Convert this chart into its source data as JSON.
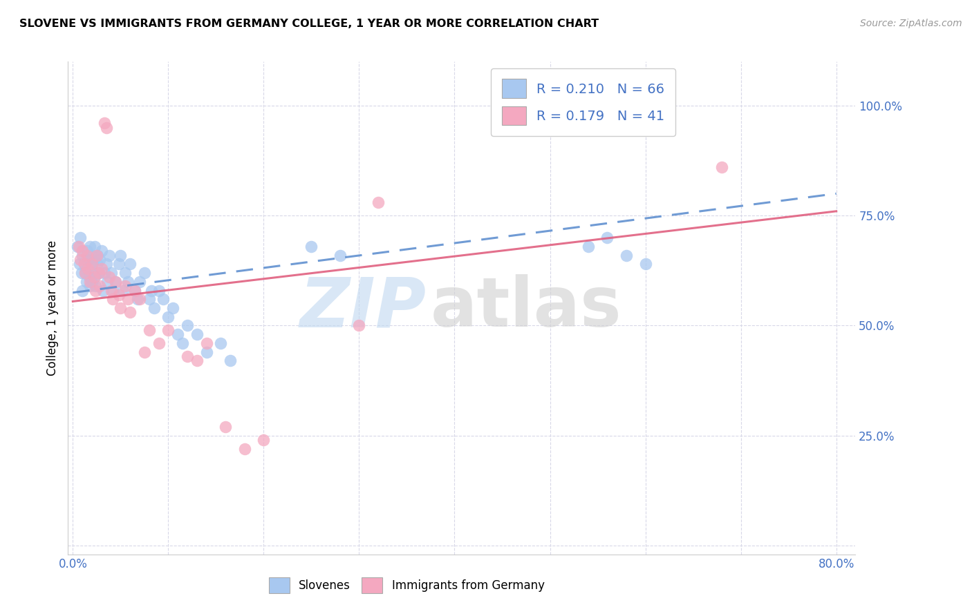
{
  "title": "SLOVENE VS IMMIGRANTS FROM GERMANY COLLEGE, 1 YEAR OR MORE CORRELATION CHART",
  "source": "Source: ZipAtlas.com",
  "ylabel": "College, 1 year or more",
  "x_min": 0.0,
  "x_max": 0.8,
  "y_min": 0.0,
  "y_max": 1.05,
  "x_ticks": [
    0.0,
    0.1,
    0.2,
    0.3,
    0.4,
    0.5,
    0.6,
    0.7,
    0.8
  ],
  "x_tick_labels": [
    "0.0%",
    "",
    "",
    "",
    "",
    "",
    "",
    "",
    "80.0%"
  ],
  "y_ticks": [
    0.0,
    0.25,
    0.5,
    0.75,
    1.0
  ],
  "y_tick_labels": [
    "",
    "25.0%",
    "50.0%",
    "75.0%",
    "100.0%"
  ],
  "legend_r1": "R = 0.210",
  "legend_n1": "N = 66",
  "legend_r2": "R = 0.179",
  "legend_n2": "N = 41",
  "color_blue": "#a8c8f0",
  "color_pink": "#f4a8c0",
  "trendline_blue_color": "#6090d0",
  "trendline_pink_color": "#e06080",
  "watermark_zip": "ZIP",
  "watermark_atlas": "atlas",
  "blue_trend_start_y": 0.575,
  "blue_trend_end_y": 0.8,
  "pink_trend_start_y": 0.555,
  "pink_trend_end_y": 0.76,
  "slovenes_x": [
    0.005,
    0.007,
    0.008,
    0.009,
    0.01,
    0.01,
    0.012,
    0.013,
    0.014,
    0.015,
    0.015,
    0.016,
    0.017,
    0.018,
    0.018,
    0.019,
    0.02,
    0.02,
    0.021,
    0.022,
    0.023,
    0.023,
    0.024,
    0.025,
    0.026,
    0.027,
    0.028,
    0.03,
    0.032,
    0.033,
    0.035,
    0.036,
    0.038,
    0.04,
    0.042,
    0.045,
    0.048,
    0.05,
    0.053,
    0.055,
    0.058,
    0.06,
    0.065,
    0.068,
    0.07,
    0.075,
    0.08,
    0.082,
    0.085,
    0.09,
    0.095,
    0.1,
    0.105,
    0.11,
    0.115,
    0.12,
    0.13,
    0.14,
    0.155,
    0.165,
    0.25,
    0.28,
    0.54,
    0.56,
    0.58,
    0.6
  ],
  "slovenes_y": [
    0.68,
    0.64,
    0.7,
    0.62,
    0.66,
    0.58,
    0.64,
    0.62,
    0.6,
    0.67,
    0.63,
    0.65,
    0.61,
    0.59,
    0.68,
    0.66,
    0.64,
    0.6,
    0.62,
    0.65,
    0.61,
    0.68,
    0.59,
    0.64,
    0.66,
    0.62,
    0.65,
    0.67,
    0.58,
    0.62,
    0.64,
    0.6,
    0.66,
    0.62,
    0.58,
    0.6,
    0.64,
    0.66,
    0.58,
    0.62,
    0.6,
    0.64,
    0.58,
    0.56,
    0.6,
    0.62,
    0.56,
    0.58,
    0.54,
    0.58,
    0.56,
    0.52,
    0.54,
    0.48,
    0.46,
    0.5,
    0.48,
    0.44,
    0.46,
    0.42,
    0.68,
    0.66,
    0.68,
    0.7,
    0.66,
    0.64
  ],
  "immigrants_x": [
    0.006,
    0.008,
    0.01,
    0.012,
    0.013,
    0.015,
    0.016,
    0.018,
    0.02,
    0.022,
    0.024,
    0.025,
    0.027,
    0.028,
    0.03,
    0.033,
    0.035,
    0.038,
    0.04,
    0.042,
    0.045,
    0.048,
    0.05,
    0.055,
    0.058,
    0.06,
    0.065,
    0.07,
    0.075,
    0.08,
    0.09,
    0.1,
    0.12,
    0.13,
    0.14,
    0.16,
    0.18,
    0.2,
    0.3,
    0.32,
    0.68
  ],
  "immigrants_y": [
    0.68,
    0.65,
    0.67,
    0.64,
    0.62,
    0.66,
    0.63,
    0.6,
    0.64,
    0.61,
    0.58,
    0.66,
    0.62,
    0.59,
    0.63,
    0.96,
    0.95,
    0.61,
    0.58,
    0.56,
    0.6,
    0.57,
    0.54,
    0.59,
    0.56,
    0.53,
    0.58,
    0.56,
    0.44,
    0.49,
    0.46,
    0.49,
    0.43,
    0.42,
    0.46,
    0.27,
    0.22,
    0.24,
    0.5,
    0.78,
    0.86
  ]
}
